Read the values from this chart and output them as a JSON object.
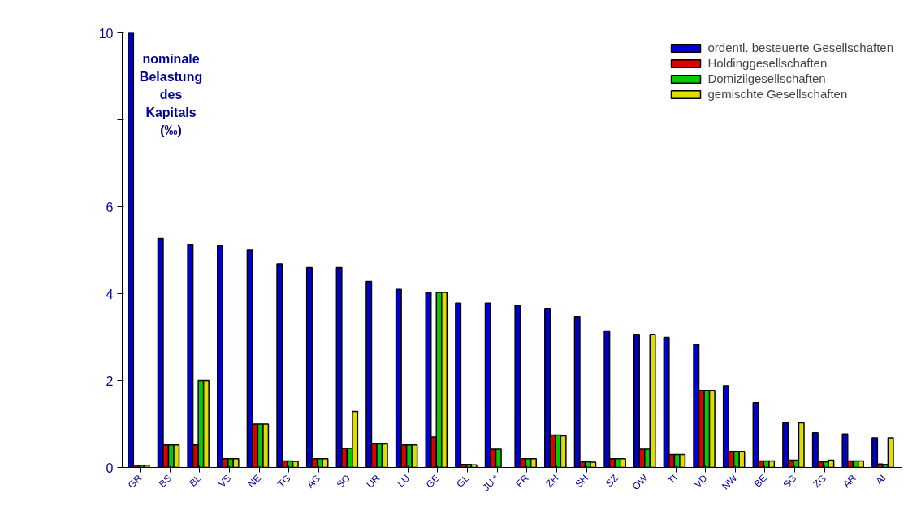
{
  "chart_data": {
    "type": "bar",
    "ylabel": "nominale\nBelastung\ndes\nKapitals\n(‰)",
    "categories": [
      "GR",
      "BS",
      "BL",
      "VS",
      "NE",
      "TG",
      "AG",
      "SO",
      "UR",
      "LU",
      "GE",
      "GL",
      "JU *",
      "FR",
      "ZH",
      "SH",
      "SZ",
      "OW",
      "TI",
      "VD",
      "NW",
      "BE",
      "SG",
      "ZG",
      "AR",
      "AI"
    ],
    "series": [
      {
        "name": "ordentl. besteuerte Gesellschaften",
        "color": "#0000cc",
        "values": [
          10,
          5.27,
          5.12,
          5.1,
          5.0,
          4.68,
          4.6,
          4.6,
          4.28,
          4.1,
          4.03,
          3.78,
          3.78,
          3.73,
          3.66,
          3.47,
          3.14,
          3.06,
          2.99,
          2.83,
          1.88,
          1.49,
          1.03,
          0.8,
          0.77,
          0.68
        ]
      },
      {
        "name": "Holdinggesellschaften",
        "color": "#dd0000",
        "values": [
          0.05,
          0.52,
          0.52,
          0.2,
          1.0,
          0.15,
          0.2,
          0.44,
          0.54,
          0.52,
          0.7,
          0.07,
          0.42,
          0.2,
          0.75,
          0.13,
          0.2,
          0.42,
          0.3,
          1.77,
          0.37,
          0.15,
          0.17,
          0.13,
          0.15,
          0.08
        ]
      },
      {
        "name": "Domizilgesellschaften",
        "color": "#00cc00",
        "values": [
          0.05,
          0.52,
          2.0,
          0.2,
          1.0,
          0.15,
          0.2,
          0.44,
          0.54,
          0.52,
          4.03,
          0.07,
          0.42,
          0.2,
          0.75,
          0.13,
          0.2,
          0.42,
          0.3,
          1.77,
          0.37,
          0.15,
          0.17,
          0.13,
          0.15,
          0.07
        ]
      },
      {
        "name": "gemischte Gesellschaften",
        "color": "#dddd00",
        "values": [
          0.05,
          0.52,
          2.0,
          0.2,
          1.0,
          0.14,
          0.2,
          1.29,
          0.54,
          0.52,
          4.03,
          0.06,
          null,
          0.2,
          0.73,
          0.12,
          0.2,
          3.06,
          0.3,
          1.77,
          0.37,
          0.15,
          1.03,
          0.17,
          0.15,
          0.68
        ]
      }
    ],
    "ylim": [
      0,
      10
    ],
    "yticks": [
      0,
      2,
      4,
      6,
      {
        "value": 8,
        "label": null
      },
      10
    ],
    "legend": "top right"
  }
}
